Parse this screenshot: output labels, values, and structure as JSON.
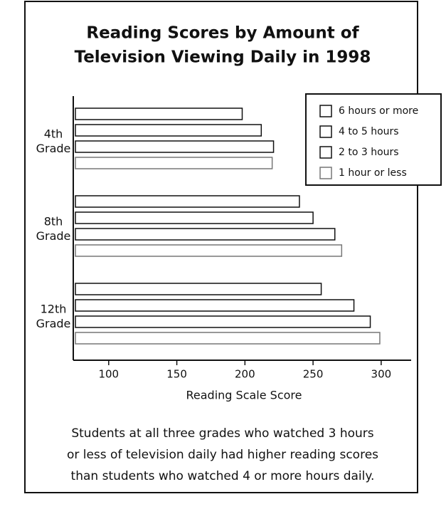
{
  "chart_data": {
    "type": "barh",
    "title": [
      "Reading Scores by Amount of",
      "Television Viewing Daily in 1998"
    ],
    "categories": [
      "4th Grade",
      "8th Grade",
      "12th Grade"
    ],
    "series": [
      {
        "name": "6 hours or more",
        "color": "#ffffff",
        "edgecolor": "#111111",
        "values": [
          198,
          240,
          256
        ]
      },
      {
        "name": "4 to 5 hours",
        "color": "#ffffff",
        "edgecolor": "#111111",
        "values": [
          212,
          250,
          280
        ]
      },
      {
        "name": "2 to 3 hours",
        "color": "#ffffff",
        "edgecolor": "#111111",
        "values": [
          221,
          266,
          292
        ]
      },
      {
        "name": "1 hour or less",
        "color": "#ffffff",
        "edgecolor": "#777777",
        "values": [
          220,
          271,
          299
        ]
      }
    ],
    "xlim": [
      74,
      322
    ],
    "xticks": [
      100,
      150,
      200,
      250,
      300
    ],
    "xlabel": "Reading Scale Score",
    "legend": "upper right",
    "caption": [
      "Students at all three grades who watched 3 hours",
      "or less of television daily had higher reading scores",
      "than students who watched 4 or more hours daily."
    ]
  }
}
